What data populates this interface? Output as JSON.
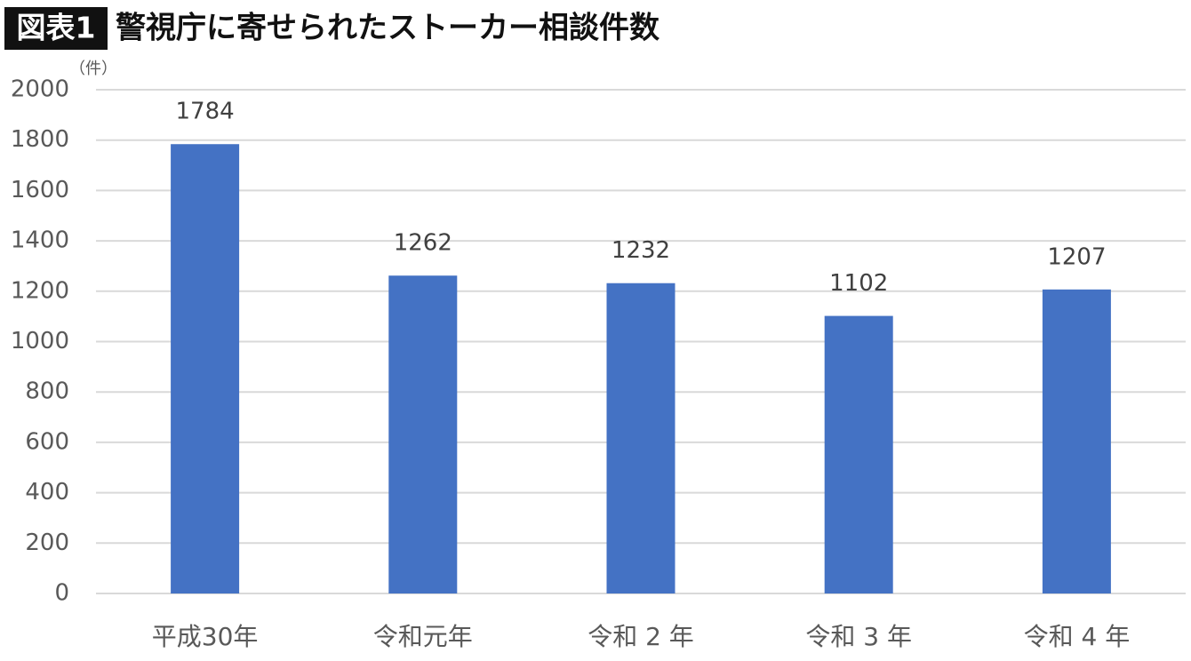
{
  "chart_data": {
    "type": "bar",
    "title_label": "図表1",
    "title": "警視庁に寄せられたストーカー相談件数",
    "y_label": "（件）",
    "categories": [
      "平成30年",
      "令和元年",
      "令和 2 年",
      "令和 3 年",
      "令和 4 年"
    ],
    "values": [
      1784,
      1262,
      1232,
      1102,
      1207
    ],
    "color": "#4472c4",
    "ylim": [
      0,
      2000
    ],
    "yticks": [
      0,
      200,
      400,
      600,
      800,
      1000,
      1200,
      1400,
      1600,
      1800,
      2000
    ],
    "grid": true
  }
}
